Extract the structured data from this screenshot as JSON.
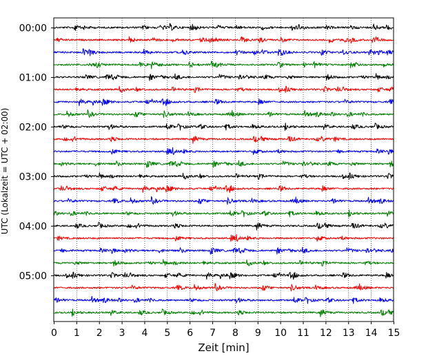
{
  "chart_data": {
    "type": "line",
    "subtype": "seismogram-dayplot",
    "title": "",
    "xlabel": "Zeit  [min]",
    "ylabel": "UTC (Lokalzeit = UTC + 02:00)",
    "xlim": [
      0,
      15
    ],
    "x_ticks": [
      0,
      1,
      2,
      3,
      4,
      5,
      6,
      7,
      8,
      9,
      10,
      11,
      12,
      13,
      14,
      15
    ],
    "x_tick_labels": [
      "0",
      "1",
      "2",
      "3",
      "4",
      "5",
      "6",
      "7",
      "8",
      "9",
      "10",
      "11",
      "12",
      "13",
      "14",
      "15"
    ],
    "y_tick_labels": [
      "00:00",
      "01:00",
      "02:00",
      "03:00",
      "04:00",
      "05:00"
    ],
    "y_tick_rows": [
      0,
      4,
      8,
      12,
      16,
      20
    ],
    "minutes_per_row": 15,
    "grid": "vertical dotted at every minute",
    "colors": [
      "#000000",
      "#ff0000",
      "#0000ff",
      "#008000"
    ],
    "series": [
      {
        "row_start": "00:00",
        "color": "#000000"
      },
      {
        "row_start": "00:15",
        "color": "#ff0000"
      },
      {
        "row_start": "00:30",
        "color": "#0000ff"
      },
      {
        "row_start": "00:45",
        "color": "#008000"
      },
      {
        "row_start": "01:00",
        "color": "#000000"
      },
      {
        "row_start": "01:15",
        "color": "#ff0000"
      },
      {
        "row_start": "01:30",
        "color": "#0000ff"
      },
      {
        "row_start": "01:45",
        "color": "#008000"
      },
      {
        "row_start": "02:00",
        "color": "#000000"
      },
      {
        "row_start": "02:15",
        "color": "#ff0000"
      },
      {
        "row_start": "02:30",
        "color": "#0000ff"
      },
      {
        "row_start": "02:45",
        "color": "#008000"
      },
      {
        "row_start": "03:00",
        "color": "#000000"
      },
      {
        "row_start": "03:15",
        "color": "#ff0000"
      },
      {
        "row_start": "03:30",
        "color": "#0000ff"
      },
      {
        "row_start": "03:45",
        "color": "#008000"
      },
      {
        "row_start": "04:00",
        "color": "#000000"
      },
      {
        "row_start": "04:15",
        "color": "#ff0000"
      },
      {
        "row_start": "04:30",
        "color": "#0000ff"
      },
      {
        "row_start": "04:45",
        "color": "#008000"
      },
      {
        "row_start": "05:00",
        "color": "#000000"
      },
      {
        "row_start": "05:15",
        "color": "#ff0000"
      },
      {
        "row_start": "05:30",
        "color": "#0000ff"
      },
      {
        "row_start": "05:45",
        "color": "#008000"
      }
    ]
  }
}
